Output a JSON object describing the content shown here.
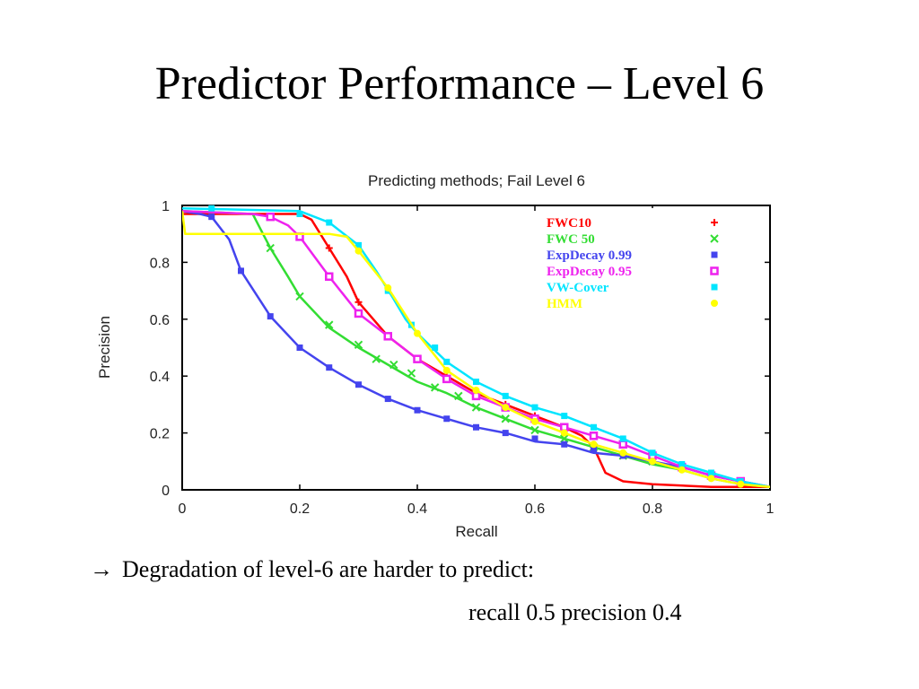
{
  "slide": {
    "title": "Predictor Performance – Level 6",
    "bullet_arrow": "→",
    "bullet_text": "Degradation of level-6 are harder to predict:",
    "sub_text": "recall 0.5 precision 0.4"
  },
  "chart_data": {
    "type": "line",
    "title": "Predicting methods; Fail Level 6",
    "xlabel": "Recall",
    "ylabel": "Precision",
    "xlim": [
      0,
      1
    ],
    "ylim": [
      0,
      1
    ],
    "x_ticks": [
      "0",
      "0.2",
      "0.4",
      "0.6",
      "0.8",
      "1"
    ],
    "y_ticks": [
      "0",
      "0.2",
      "0.4",
      "0.6",
      "0.8",
      "1"
    ],
    "grid": false,
    "legend_position": "top-right",
    "series": [
      {
        "name": "FWC10",
        "color": "#ff0000",
        "marker": "plus",
        "points": [
          [
            0,
            0.97
          ],
          [
            0.2,
            0.97
          ],
          [
            0.22,
            0.95
          ],
          [
            0.25,
            0.85
          ],
          [
            0.28,
            0.75
          ],
          [
            0.3,
            0.66
          ],
          [
            0.35,
            0.54
          ],
          [
            0.4,
            0.46
          ],
          [
            0.45,
            0.4
          ],
          [
            0.5,
            0.34
          ],
          [
            0.55,
            0.3
          ],
          [
            0.6,
            0.26
          ],
          [
            0.65,
            0.22
          ],
          [
            0.68,
            0.19
          ],
          [
            0.7,
            0.15
          ],
          [
            0.72,
            0.06
          ],
          [
            0.75,
            0.03
          ],
          [
            0.8,
            0.02
          ],
          [
            0.9,
            0.01
          ],
          [
            1,
            0.01
          ]
        ],
        "markers": [
          [
            0.25,
            0.85
          ],
          [
            0.3,
            0.66
          ],
          [
            0.35,
            0.54
          ],
          [
            0.4,
            0.46
          ],
          [
            0.45,
            0.4
          ],
          [
            0.5,
            0.34
          ],
          [
            0.55,
            0.3
          ],
          [
            0.6,
            0.26
          ],
          [
            0.65,
            0.22
          ],
          [
            0.7,
            0.15
          ]
        ]
      },
      {
        "name": "FWC 50",
        "color": "#33dd33",
        "marker": "x",
        "points": [
          [
            0,
            0.98
          ],
          [
            0.12,
            0.97
          ],
          [
            0.13,
            0.93
          ],
          [
            0.15,
            0.85
          ],
          [
            0.18,
            0.75
          ],
          [
            0.2,
            0.68
          ],
          [
            0.25,
            0.57
          ],
          [
            0.3,
            0.5
          ],
          [
            0.35,
            0.44
          ],
          [
            0.4,
            0.38
          ],
          [
            0.45,
            0.34
          ],
          [
            0.5,
            0.29
          ],
          [
            0.55,
            0.25
          ],
          [
            0.6,
            0.21
          ],
          [
            0.65,
            0.18
          ],
          [
            0.7,
            0.15
          ],
          [
            0.75,
            0.12
          ],
          [
            0.8,
            0.09
          ],
          [
            0.85,
            0.07
          ],
          [
            0.9,
            0.04
          ],
          [
            0.95,
            0.02
          ],
          [
            1,
            0.01
          ]
        ],
        "markers": [
          [
            0.15,
            0.85
          ],
          [
            0.2,
            0.68
          ],
          [
            0.25,
            0.58
          ],
          [
            0.3,
            0.51
          ],
          [
            0.33,
            0.46
          ],
          [
            0.36,
            0.44
          ],
          [
            0.39,
            0.41
          ],
          [
            0.43,
            0.36
          ],
          [
            0.47,
            0.33
          ],
          [
            0.5,
            0.29
          ],
          [
            0.55,
            0.25
          ],
          [
            0.6,
            0.21
          ],
          [
            0.65,
            0.18
          ],
          [
            0.7,
            0.15
          ],
          [
            0.75,
            0.12
          ],
          [
            0.8,
            0.1
          ],
          [
            0.85,
            0.08
          ],
          [
            0.9,
            0.05
          ],
          [
            0.95,
            0.03
          ]
        ]
      },
      {
        "name": "ExpDecay 0.99",
        "color": "#4444ee",
        "marker": "square-filled",
        "points": [
          [
            0,
            0.98
          ],
          [
            0.03,
            0.97
          ],
          [
            0.05,
            0.96
          ],
          [
            0.08,
            0.88
          ],
          [
            0.1,
            0.77
          ],
          [
            0.15,
            0.61
          ],
          [
            0.2,
            0.5
          ],
          [
            0.25,
            0.43
          ],
          [
            0.3,
            0.37
          ],
          [
            0.35,
            0.32
          ],
          [
            0.4,
            0.28
          ],
          [
            0.45,
            0.25
          ],
          [
            0.5,
            0.22
          ],
          [
            0.55,
            0.2
          ],
          [
            0.6,
            0.17
          ],
          [
            0.65,
            0.16
          ],
          [
            0.7,
            0.13
          ],
          [
            0.75,
            0.12
          ],
          [
            0.8,
            0.1
          ],
          [
            0.85,
            0.08
          ],
          [
            0.9,
            0.05
          ],
          [
            0.95,
            0.03
          ],
          [
            1,
            0.01
          ]
        ],
        "markers": [
          [
            0.05,
            0.96
          ],
          [
            0.1,
            0.77
          ],
          [
            0.15,
            0.61
          ],
          [
            0.2,
            0.5
          ],
          [
            0.25,
            0.43
          ],
          [
            0.3,
            0.37
          ],
          [
            0.35,
            0.32
          ],
          [
            0.4,
            0.28
          ],
          [
            0.45,
            0.25
          ],
          [
            0.5,
            0.22
          ],
          [
            0.55,
            0.2
          ],
          [
            0.6,
            0.18
          ],
          [
            0.65,
            0.16
          ],
          [
            0.7,
            0.14
          ],
          [
            0.75,
            0.12
          ],
          [
            0.8,
            0.1
          ],
          [
            0.85,
            0.08
          ],
          [
            0.9,
            0.05
          ],
          [
            0.95,
            0.03
          ]
        ]
      },
      {
        "name": "ExpDecay 0.95",
        "color": "#ee22ee",
        "marker": "square-open",
        "points": [
          [
            0,
            0.98
          ],
          [
            0.12,
            0.97
          ],
          [
            0.15,
            0.96
          ],
          [
            0.18,
            0.93
          ],
          [
            0.2,
            0.89
          ],
          [
            0.25,
            0.75
          ],
          [
            0.3,
            0.62
          ],
          [
            0.35,
            0.54
          ],
          [
            0.4,
            0.46
          ],
          [
            0.45,
            0.39
          ],
          [
            0.5,
            0.33
          ],
          [
            0.55,
            0.29
          ],
          [
            0.6,
            0.25
          ],
          [
            0.65,
            0.22
          ],
          [
            0.7,
            0.19
          ],
          [
            0.75,
            0.16
          ],
          [
            0.8,
            0.12
          ],
          [
            0.85,
            0.08
          ],
          [
            0.9,
            0.05
          ],
          [
            0.95,
            0.03
          ],
          [
            1,
            0.01
          ]
        ],
        "markers": [
          [
            0.15,
            0.96
          ],
          [
            0.2,
            0.89
          ],
          [
            0.25,
            0.75
          ],
          [
            0.3,
            0.62
          ],
          [
            0.35,
            0.54
          ],
          [
            0.4,
            0.46
          ],
          [
            0.45,
            0.39
          ],
          [
            0.5,
            0.33
          ],
          [
            0.55,
            0.29
          ],
          [
            0.6,
            0.25
          ],
          [
            0.65,
            0.22
          ],
          [
            0.7,
            0.19
          ],
          [
            0.75,
            0.16
          ],
          [
            0.8,
            0.12
          ],
          [
            0.85,
            0.08
          ],
          [
            0.9,
            0.05
          ],
          [
            0.95,
            0.03
          ]
        ]
      },
      {
        "name": "VW-Cover",
        "color": "#00e5ff",
        "marker": "square-filled",
        "points": [
          [
            0,
            0.99
          ],
          [
            0.2,
            0.98
          ],
          [
            0.25,
            0.94
          ],
          [
            0.3,
            0.86
          ],
          [
            0.33,
            0.77
          ],
          [
            0.36,
            0.67
          ],
          [
            0.38,
            0.6
          ],
          [
            0.4,
            0.55
          ],
          [
            0.45,
            0.45
          ],
          [
            0.5,
            0.38
          ],
          [
            0.55,
            0.33
          ],
          [
            0.6,
            0.29
          ],
          [
            0.65,
            0.26
          ],
          [
            0.7,
            0.22
          ],
          [
            0.75,
            0.18
          ],
          [
            0.8,
            0.13
          ],
          [
            0.85,
            0.09
          ],
          [
            0.9,
            0.06
          ],
          [
            0.95,
            0.03
          ],
          [
            1,
            0.01
          ]
        ],
        "markers": [
          [
            0.05,
            0.99
          ],
          [
            0.2,
            0.97
          ],
          [
            0.25,
            0.94
          ],
          [
            0.3,
            0.86
          ],
          [
            0.35,
            0.7
          ],
          [
            0.39,
            0.58
          ],
          [
            0.43,
            0.5
          ],
          [
            0.45,
            0.45
          ],
          [
            0.5,
            0.38
          ],
          [
            0.55,
            0.33
          ],
          [
            0.6,
            0.29
          ],
          [
            0.65,
            0.26
          ],
          [
            0.7,
            0.22
          ],
          [
            0.75,
            0.18
          ],
          [
            0.8,
            0.13
          ],
          [
            0.85,
            0.09
          ],
          [
            0.9,
            0.06
          ],
          [
            0.95,
            0.03
          ]
        ]
      },
      {
        "name": "HMM",
        "color": "#ffff00",
        "marker": "circle",
        "points": [
          [
            0,
            0.98
          ],
          [
            0.005,
            0.9
          ],
          [
            0.08,
            0.9
          ],
          [
            0.2,
            0.9
          ],
          [
            0.25,
            0.9
          ],
          [
            0.28,
            0.89
          ],
          [
            0.3,
            0.84
          ],
          [
            0.35,
            0.71
          ],
          [
            0.4,
            0.55
          ],
          [
            0.45,
            0.42
          ],
          [
            0.5,
            0.35
          ],
          [
            0.55,
            0.29
          ],
          [
            0.6,
            0.24
          ],
          [
            0.65,
            0.2
          ],
          [
            0.7,
            0.16
          ],
          [
            0.75,
            0.13
          ],
          [
            0.8,
            0.1
          ],
          [
            0.85,
            0.07
          ],
          [
            0.9,
            0.04
          ],
          [
            0.95,
            0.02
          ],
          [
            1,
            0.01
          ]
        ],
        "markers": [
          [
            0.3,
            0.84
          ],
          [
            0.35,
            0.71
          ],
          [
            0.4,
            0.55
          ],
          [
            0.45,
            0.42
          ],
          [
            0.5,
            0.35
          ],
          [
            0.55,
            0.29
          ],
          [
            0.6,
            0.24
          ],
          [
            0.65,
            0.2
          ],
          [
            0.7,
            0.16
          ],
          [
            0.75,
            0.13
          ],
          [
            0.8,
            0.1
          ],
          [
            0.85,
            0.07
          ],
          [
            0.9,
            0.04
          ],
          [
            0.95,
            0.02
          ]
        ]
      }
    ]
  }
}
